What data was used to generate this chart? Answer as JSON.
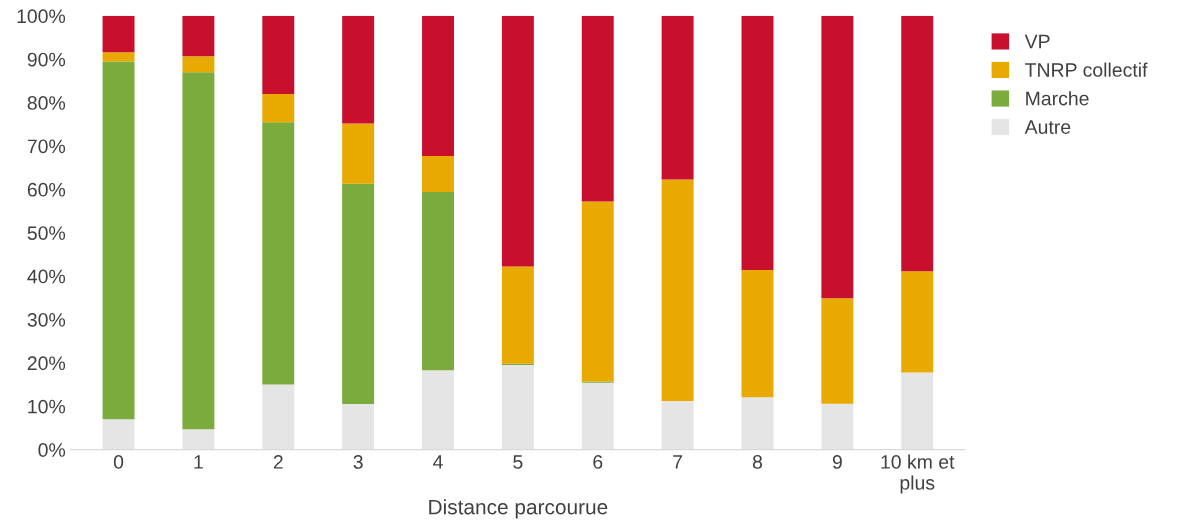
{
  "chart_data": {
    "type": "bar",
    "stacked": true,
    "xlabel": "Distance parcourue",
    "categories": [
      "0",
      "1",
      "2",
      "3",
      "4",
      "5",
      "6",
      "7",
      "8",
      "9",
      "10 km et\nplus"
    ],
    "series": [
      {
        "name": "Autre",
        "color": "#e5e5e5",
        "values": [
          7,
          4.7,
          15,
          10.5,
          18.3,
          19.5,
          15.4,
          11.2,
          12.1,
          10.6,
          17.8
        ]
      },
      {
        "name": "Marche",
        "color": "#7aab3c",
        "values": [
          82.5,
          82.3,
          60.5,
          50.8,
          41.1,
          0.3,
          0.3,
          0,
          0,
          0,
          0
        ]
      },
      {
        "name": "TNRP collectif",
        "color": "#e8a900",
        "values": [
          2.1,
          3.7,
          6.5,
          13.9,
          8.3,
          22.4,
          41.5,
          51.1,
          29.3,
          24.3,
          23.3
        ]
      },
      {
        "name": "VP",
        "color": "#c8102e",
        "values": [
          8.4,
          9.3,
          18,
          24.8,
          32.3,
          57.8,
          42.8,
          37.7,
          58.6,
          65.1,
          58.9
        ]
      }
    ],
    "ylim": [
      0,
      100
    ],
    "yticks": [
      {
        "value": 0,
        "label": "0%"
      },
      {
        "value": 10,
        "label": "10%"
      },
      {
        "value": 20,
        "label": "20%"
      },
      {
        "value": 30,
        "label": "30%"
      },
      {
        "value": 40,
        "label": "40%"
      },
      {
        "value": 50,
        "label": "50%"
      },
      {
        "value": 60,
        "label": "60%"
      },
      {
        "value": 70,
        "label": "70%"
      },
      {
        "value": 80,
        "label": "80%"
      },
      {
        "value": 90,
        "label": "90%"
      },
      {
        "value": 100,
        "label": "100%"
      }
    ],
    "grid": false,
    "legend": "top right"
  }
}
